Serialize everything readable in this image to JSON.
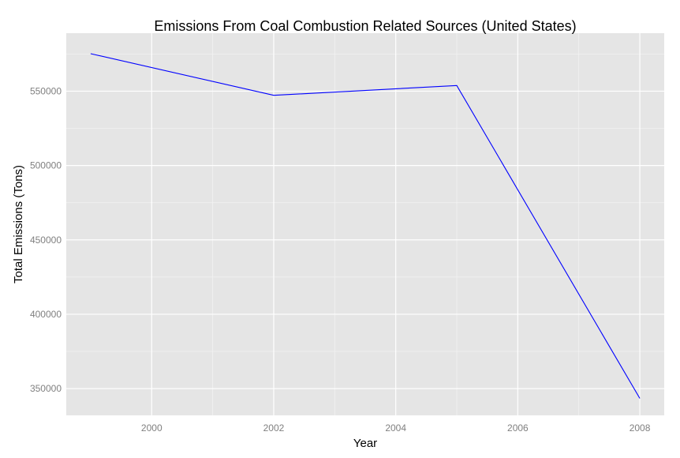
{
  "chart_data": {
    "type": "line",
    "title": "Emissions From Coal Combustion Related Sources (United States)",
    "xlabel": "Year",
    "ylabel": "Total Emissions (Tons)",
    "x": [
      1999,
      2002,
      2005,
      2008
    ],
    "series": [
      {
        "values": [
          575200,
          547200,
          553800,
          343400
        ]
      }
    ],
    "xticks": [
      "2000",
      "2002",
      "2004",
      "2006",
      "2008"
    ],
    "yticks": [
      "350000",
      "400000",
      "450000",
      "500000",
      "550000"
    ],
    "xlim": [
      1998.6,
      2008.4
    ],
    "ylim": [
      332000,
      589000
    ],
    "grid": true,
    "colors": {
      "panel": "#e5e5e5",
      "grid_major": "#ffffff",
      "grid_minor": "#f2f2f2",
      "line": "#0000ff"
    }
  }
}
